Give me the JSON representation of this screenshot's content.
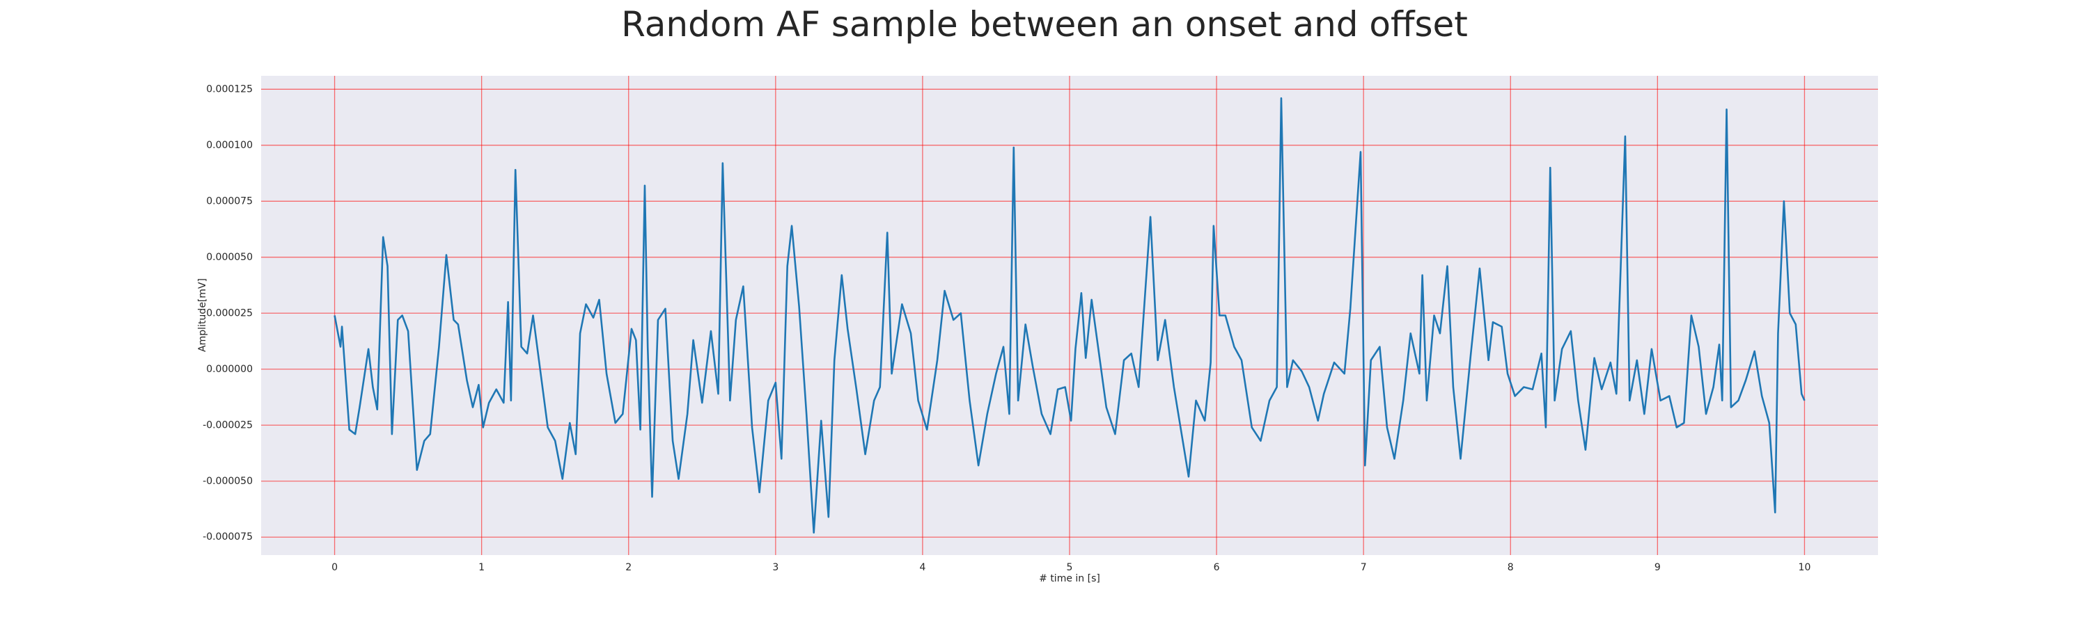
{
  "chart_data": {
    "type": "line",
    "title": "Random AF sample between an onset and offset",
    "x_label": "# time in [s]",
    "y_label": "Amplitude[mV]",
    "color": "#1f77b4",
    "grid": true,
    "grid_color": "#ff0000",
    "background": "#eaeaf2",
    "xlim": [
      -0.5,
      10.5
    ],
    "ylim": [
      -8.3e-05,
      0.000131
    ],
    "xticks": [
      0,
      1,
      2,
      3,
      4,
      5,
      6,
      7,
      8,
      9,
      10
    ],
    "yticks": [
      {
        "value": -7.5e-05,
        "label": "-0.000075"
      },
      {
        "value": -5e-05,
        "label": "-0.000050"
      },
      {
        "value": -2.5e-05,
        "label": "-0.000025"
      },
      {
        "value": 0,
        "label": "0.000000"
      },
      {
        "value": 2.5e-05,
        "label": "0.000025"
      },
      {
        "value": 5e-05,
        "label": "0.000050"
      },
      {
        "value": 7.5e-05,
        "label": "0.000075"
      },
      {
        "value": 0.0001,
        "label": "0.000100"
      },
      {
        "value": 0.000125,
        "label": "0.000125"
      }
    ],
    "x": [
      0,
      0.04,
      0.05,
      0.1,
      0.14,
      0.17,
      0.23,
      0.26,
      0.29,
      0.33,
      0.36,
      0.39,
      0.43,
      0.46,
      0.5,
      0.53,
      0.56,
      0.61,
      0.65,
      0.71,
      0.76,
      0.81,
      0.84,
      0.9,
      0.94,
      0.98,
      1.01,
      1.05,
      1.1,
      1.15,
      1.18,
      1.2,
      1.23,
      1.27,
      1.31,
      1.35,
      1.39,
      1.45,
      1.5,
      1.55,
      1.6,
      1.64,
      1.67,
      1.71,
      1.76,
      1.8,
      1.85,
      1.91,
      1.96,
      2.02,
      2.05,
      2.08,
      2.11,
      2.13,
      2.16,
      2.2,
      2.25,
      2.3,
      2.34,
      2.4,
      2.44,
      2.5,
      2.56,
      2.61,
      2.64,
      2.69,
      2.73,
      2.78,
      2.84,
      2.89,
      2.95,
      3.0,
      3.04,
      3.08,
      3.11,
      3.16,
      3.21,
      3.26,
      3.31,
      3.36,
      3.4,
      3.45,
      3.49,
      3.55,
      3.61,
      3.67,
      3.71,
      3.76,
      3.79,
      3.86,
      3.92,
      3.97,
      4.03,
      4.1,
      4.15,
      4.21,
      4.26,
      4.32,
      4.38,
      4.44,
      4.5,
      4.55,
      4.59,
      4.62,
      4.65,
      4.7,
      4.75,
      4.81,
      4.87,
      4.92,
      4.97,
      5.01,
      5.04,
      5.08,
      5.11,
      5.15,
      5.2,
      5.25,
      5.31,
      5.37,
      5.42,
      5.47,
      5.51,
      5.55,
      5.6,
      5.65,
      5.71,
      5.77,
      5.81,
      5.86,
      5.92,
      5.96,
      5.98,
      6.02,
      6.06,
      6.12,
      6.17,
      6.24,
      6.3,
      6.36,
      6.41,
      6.44,
      6.48,
      6.52,
      6.58,
      6.63,
      6.69,
      6.73,
      6.8,
      6.87,
      6.91,
      6.98,
      7.01,
      7.05,
      7.11,
      7.16,
      7.21,
      7.27,
      7.32,
      7.38,
      7.4,
      7.43,
      7.48,
      7.52,
      7.57,
      7.61,
      7.66,
      7.73,
      7.79,
      7.85,
      7.88,
      7.94,
      7.98,
      8.03,
      8.09,
      8.15,
      8.21,
      8.24,
      8.27,
      8.3,
      8.35,
      8.41,
      8.46,
      8.51,
      8.57,
      8.62,
      8.68,
      8.72,
      8.78,
      8.81,
      8.86,
      8.91,
      8.96,
      9.02,
      9.08,
      9.13,
      9.18,
      9.23,
      9.28,
      9.33,
      9.38,
      9.42,
      9.44,
      9.47,
      9.5,
      9.55,
      9.6,
      9.66,
      9.71,
      9.76,
      9.8,
      9.82,
      9.86,
      9.9,
      9.94,
      9.98,
      10
    ],
    "values": [
      2.4e-05,
      1e-05,
      1.9e-05,
      -2.7e-05,
      -2.9e-05,
      -1.7e-05,
      9e-06,
      -8e-06,
      -1.8e-05,
      5.9e-05,
      4.6e-05,
      -2.9e-05,
      2.2e-05,
      2.4e-05,
      1.7e-05,
      -1.4e-05,
      -4.5e-05,
      -3.2e-05,
      -2.9e-05,
      1e-05,
      5.1e-05,
      2.2e-05,
      2e-05,
      -5e-06,
      -1.7e-05,
      -7e-06,
      -2.6e-05,
      -1.5e-05,
      -9e-06,
      -1.5e-05,
      3e-05,
      -1.4e-05,
      8.9e-05,
      1e-05,
      7e-06,
      2.4e-05,
      4e-06,
      -2.6e-05,
      -3.2e-05,
      -4.9e-05,
      -2.4e-05,
      -3.8e-05,
      1.6e-05,
      2.9e-05,
      2.3e-05,
      3.1e-05,
      -2e-06,
      -2.4e-05,
      -2e-05,
      1.8e-05,
      1.3e-05,
      -2.7e-05,
      8.2e-05,
      1e-05,
      -5.7e-05,
      2.2e-05,
      2.7e-05,
      -3.2e-05,
      -4.9e-05,
      -2e-05,
      1.3e-05,
      -1.5e-05,
      1.7e-05,
      -1.1e-05,
      9.2e-05,
      -1.4e-05,
      2.2e-05,
      3.7e-05,
      -2.6e-05,
      -5.5e-05,
      -1.4e-05,
      -6e-06,
      -4e-05,
      4.6e-05,
      6.4e-05,
      2.8e-05,
      -2e-05,
      -7.3e-05,
      -2.3e-05,
      -6.6e-05,
      4e-06,
      4.2e-05,
      1.8e-05,
      -9e-06,
      -3.8e-05,
      -1.4e-05,
      -8e-06,
      6.1e-05,
      -2e-06,
      2.9e-05,
      1.6e-05,
      -1.4e-05,
      -2.7e-05,
      4e-06,
      3.5e-05,
      2.2e-05,
      2.5e-05,
      -1.4e-05,
      -4.3e-05,
      -2e-05,
      -2e-06,
      1e-05,
      -2e-05,
      9.9e-05,
      -1.4e-05,
      2e-05,
      1e-06,
      -2e-05,
      -2.9e-05,
      -9e-06,
      -8e-06,
      -2.3e-05,
      9e-06,
      3.4e-05,
      5e-06,
      3.1e-05,
      7e-06,
      -1.7e-05,
      -2.9e-05,
      4e-06,
      7e-06,
      -8e-06,
      3e-05,
      6.8e-05,
      4e-06,
      2.2e-05,
      -8e-06,
      -3.2e-05,
      -4.8e-05,
      -1.4e-05,
      -2.3e-05,
      3e-06,
      6.4e-05,
      2.4e-05,
      2.4e-05,
      1e-05,
      4e-06,
      -2.6e-05,
      -3.2e-05,
      -1.4e-05,
      -8e-06,
      0.000121,
      -8e-06,
      4e-06,
      -1e-06,
      -8e-06,
      -2.3e-05,
      -1.1e-05,
      3e-06,
      -2e-06,
      2.7e-05,
      9.7e-05,
      -4.3e-05,
      4e-06,
      1e-05,
      -2.6e-05,
      -4e-05,
      -1.4e-05,
      1.6e-05,
      -2e-06,
      4.2e-05,
      -1.4e-05,
      2.4e-05,
      1.6e-05,
      4.6e-05,
      -8e-06,
      -4e-05,
      7e-06,
      4.5e-05,
      4e-06,
      2.1e-05,
      1.9e-05,
      -2e-06,
      -1.2e-05,
      -8e-06,
      -9e-06,
      7e-06,
      -2.6e-05,
      9e-05,
      -1.4e-05,
      9e-06,
      1.7e-05,
      -1.4e-05,
      -3.6e-05,
      5e-06,
      -9e-06,
      3e-06,
      -1.1e-05,
      0.000104,
      -1.4e-05,
      4e-06,
      -2e-05,
      9e-06,
      -1.4e-05,
      -1.2e-05,
      -2.6e-05,
      -2.4e-05,
      2.4e-05,
      1e-05,
      -2e-05,
      -8e-06,
      1.1e-05,
      -1.4e-05,
      0.000116,
      -1.7e-05,
      -1.4e-05,
      -5e-06,
      8e-06,
      -1.2e-05,
      -2.4e-05,
      -6.4e-05,
      1.6e-05,
      7.5e-05,
      2.5e-05,
      2e-05,
      -1.1e-05,
      -1.4e-05
    ]
  }
}
